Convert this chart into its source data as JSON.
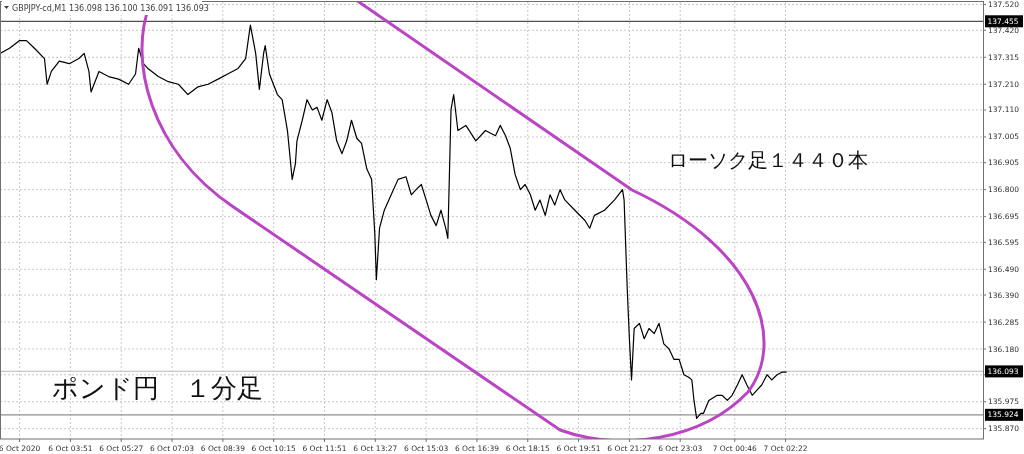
{
  "chart_data": {
    "type": "line",
    "title": "GBPJPY-cd,M1  136.098 136.100 136.091 136.093",
    "annotations": [
      "ローソク足１４４０本",
      "ポンド円　１分足"
    ],
    "x": [
      "2020-10-06T01:38",
      "2020-10-06T01:56",
      "2020-10-06T02:15",
      "2020-10-06T02:28",
      "2020-10-06T02:43",
      "2020-10-06T03:02",
      "2020-10-06T03:07",
      "2020-10-06T03:15",
      "2020-10-06T03:30",
      "2020-10-06T03:49",
      "2020-10-06T04:07",
      "2020-10-06T04:17",
      "2020-10-06T04:26",
      "2020-10-06T04:30",
      "2020-10-06T04:45",
      "2020-10-06T05:03",
      "2020-10-06T05:22",
      "2020-10-06T05:41",
      "2020-10-06T05:54",
      "2020-10-06T06:00",
      "2020-10-06T06:09",
      "2020-10-06T06:18",
      "2020-10-06T06:37",
      "2020-10-06T06:56",
      "2020-10-06T07:15",
      "2020-10-06T07:33",
      "2020-10-06T07:52",
      "2020-10-06T08:11",
      "2020-10-06T08:30",
      "2020-10-06T08:48",
      "2020-10-06T09:07",
      "2020-10-06T09:22",
      "2020-10-06T09:31",
      "2020-10-06T09:41",
      "2020-10-06T09:48",
      "2020-10-06T09:56",
      "2020-10-06T09:59",
      "2020-10-06T10:07",
      "2020-10-06T10:22",
      "2020-10-06T10:31",
      "2020-10-06T10:41",
      "2020-10-06T10:50",
      "2020-10-06T10:56",
      "2020-10-06T10:59",
      "2020-10-06T11:09",
      "2020-10-06T11:18",
      "2020-10-06T11:28",
      "2020-10-06T11:37",
      "2020-10-06T11:46",
      "2020-10-06T11:56",
      "2020-10-06T12:05",
      "2020-10-06T12:14",
      "2020-10-06T12:24",
      "2020-10-06T12:33",
      "2020-10-06T12:42",
      "2020-10-06T12:52",
      "2020-10-06T13:01",
      "2020-10-06T13:11",
      "2020-10-06T13:20",
      "2020-10-06T13:26",
      "2020-10-06T13:29",
      "2020-10-06T13:35",
      "2020-10-06T13:44",
      "2020-10-06T13:57",
      "2020-10-06T14:10",
      "2020-10-06T14:25",
      "2020-10-06T14:35",
      "2020-10-06T14:44",
      "2020-10-06T14:54",
      "2020-10-06T15:03",
      "2020-10-06T15:12",
      "2020-10-06T15:22",
      "2020-10-06T15:31",
      "2020-10-06T15:40",
      "2020-10-06T15:44",
      "2020-10-06T15:50",
      "2020-10-06T15:55",
      "2020-10-06T16:03",
      "2020-10-06T16:18",
      "2020-10-06T16:37",
      "2020-10-06T16:55",
      "2020-10-06T17:14",
      "2020-10-06T17:23",
      "2020-10-06T17:33",
      "2020-10-06T17:42",
      "2020-10-06T17:51",
      "2020-10-06T18:01",
      "2020-10-06T18:10",
      "2020-10-06T18:20",
      "2020-10-06T18:29",
      "2020-10-06T18:38",
      "2020-10-06T18:48",
      "2020-10-06T18:57",
      "2020-10-06T19:06",
      "2020-10-06T19:16",
      "2020-10-06T19:25",
      "2020-10-06T19:44",
      "2020-10-06T20:03",
      "2020-10-06T20:12",
      "2020-10-06T20:21",
      "2020-10-06T20:40",
      "2020-10-06T20:59",
      "2020-10-06T21:14",
      "2020-10-06T21:17",
      "2020-10-06T21:23",
      "2020-10-06T21:27",
      "2020-10-06T21:31",
      "2020-10-06T21:36",
      "2020-10-06T21:46",
      "2020-10-06T21:55",
      "2020-10-06T22:04",
      "2020-10-06T22:14",
      "2020-10-06T22:23",
      "2020-10-06T22:32",
      "2020-10-06T22:42",
      "2020-10-06T22:51",
      "2020-10-06T23:01",
      "2020-10-06T23:10",
      "2020-10-06T23:19",
      "2020-10-06T23:25",
      "2020-10-06T23:29",
      "2020-10-06T23:34",
      "2020-10-06T23:42",
      "2020-10-06T23:47",
      "2020-10-06T23:57",
      "2020-10-07T00:13",
      "2020-10-07T00:22",
      "2020-10-07T00:32",
      "2020-10-07T00:41",
      "2020-10-07T00:51",
      "2020-10-07T01:00",
      "2020-10-07T01:09",
      "2020-10-07T01:19",
      "2020-10-07T01:28",
      "2020-10-07T01:37",
      "2020-10-07T01:47",
      "2020-10-07T01:56",
      "2020-10-07T02:06",
      "2020-10-07T02:15",
      "2020-10-07T02:24"
    ],
    "series": [
      {
        "color": "#000000",
        "values": [
          137.33,
          137.35,
          137.38,
          137.38,
          137.35,
          137.31,
          137.21,
          137.26,
          137.3,
          137.29,
          137.31,
          137.33,
          137.26,
          137.18,
          137.26,
          137.24,
          137.23,
          137.21,
          137.25,
          137.35,
          137.29,
          137.27,
          137.24,
          137.22,
          137.21,
          137.17,
          137.2,
          137.21,
          137.23,
          137.25,
          137.27,
          137.31,
          137.44,
          137.33,
          137.19,
          137.33,
          137.36,
          137.25,
          137.17,
          137.15,
          137.03,
          136.84,
          136.9,
          136.99,
          137.07,
          137.15,
          137.11,
          137.12,
          137.07,
          137.15,
          137.1,
          136.99,
          136.94,
          136.99,
          137.07,
          137.0,
          136.98,
          136.88,
          136.84,
          136.63,
          136.45,
          136.65,
          136.72,
          136.78,
          136.84,
          136.85,
          136.78,
          136.8,
          136.82,
          136.76,
          136.7,
          136.66,
          136.72,
          136.65,
          136.61,
          137.11,
          137.17,
          137.03,
          137.05,
          136.99,
          137.03,
          137.01,
          137.05,
          137.01,
          136.96,
          136.86,
          136.8,
          136.82,
          136.78,
          136.72,
          136.76,
          136.7,
          136.78,
          136.74,
          136.8,
          136.76,
          136.72,
          136.68,
          136.65,
          136.7,
          136.72,
          136.76,
          136.8,
          136.76,
          136.41,
          136.22,
          136.06,
          136.26,
          136.28,
          136.22,
          136.26,
          136.24,
          136.28,
          136.2,
          136.18,
          136.14,
          136.14,
          136.08,
          136.07,
          136.06,
          135.98,
          135.91,
          135.93,
          135.93,
          135.98,
          136.0,
          136.0,
          135.98,
          136.0,
          136.04,
          136.08,
          136.04,
          136.0,
          136.02,
          136.04,
          136.08,
          136.06,
          136.08,
          136.09,
          136.09
        ]
      }
    ],
    "xlim": [
      "2020-10-06T01:38",
      "2020-10-07T08:35"
    ],
    "ylim": [
      135.83,
      137.53
    ],
    "xticks": [
      {
        "value": "2020-10-06T02:15",
        "label": "6 Oct 2020"
      },
      {
        "value": "2020-10-06T03:51",
        "label": "6 Oct 03:51"
      },
      {
        "value": "2020-10-06T05:27",
        "label": "6 Oct 05:27"
      },
      {
        "value": "2020-10-06T07:03",
        "label": "6 Oct 07:03"
      },
      {
        "value": "2020-10-06T08:39",
        "label": "6 Oct 08:39"
      },
      {
        "value": "2020-10-06T10:15",
        "label": "6 Oct 10:15"
      },
      {
        "value": "2020-10-06T11:51",
        "label": "6 Oct 11:51"
      },
      {
        "value": "2020-10-06T13:27",
        "label": "6 Oct 13:27"
      },
      {
        "value": "2020-10-06T15:03",
        "label": "6 Oct 15:03"
      },
      {
        "value": "2020-10-06T16:39",
        "label": "6 Oct 16:39"
      },
      {
        "value": "2020-10-06T18:15",
        "label": "6 Oct 18:15"
      },
      {
        "value": "2020-10-06T19:51",
        "label": "6 Oct 19:51"
      },
      {
        "value": "2020-10-06T21:27",
        "label": "6 Oct 21:27"
      },
      {
        "value": "2020-10-06T23:03",
        "label": "6 Oct 23:03"
      },
      {
        "value": "2020-10-07T00:46",
        "label": "7 Oct 00:46"
      },
      {
        "value": "2020-10-07T02:22",
        "label": "7 Oct 02:22"
      }
    ],
    "yticks": [
      {
        "value": 135.87,
        "label": "135.870"
      },
      {
        "value": 135.975,
        "label": "135.975"
      },
      {
        "value": 136.08,
        "label": null
      },
      {
        "value": 136.18,
        "label": "136.180"
      },
      {
        "value": 136.285,
        "label": "136.285"
      },
      {
        "value": 136.39,
        "label": "136.390"
      },
      {
        "value": 136.49,
        "label": "136.490"
      },
      {
        "value": 136.595,
        "label": "136.595"
      },
      {
        "value": 136.695,
        "label": "136.695"
      },
      {
        "value": 136.8,
        "label": "136.800"
      },
      {
        "value": 136.905,
        "label": "136.905"
      },
      {
        "value": 137.005,
        "label": "137.005"
      },
      {
        "value": 137.11,
        "label": "137.110"
      },
      {
        "value": 137.21,
        "label": "137.210"
      },
      {
        "value": 137.315,
        "label": "137.315"
      },
      {
        "value": 137.42,
        "label": "137.420"
      },
      {
        "value": 137.52,
        "label": "137.520"
      }
    ],
    "ref_lines": [
      {
        "axis": "y",
        "value": 137.455,
        "label": "137.455",
        "color": "#505050"
      },
      {
        "axis": "y",
        "value": 135.924,
        "label": "135.924",
        "color": "#909090"
      },
      {
        "axis": "y",
        "value": 136.093,
        "label": "136.093",
        "color": "#c8c8c8"
      }
    ],
    "grid": true,
    "marker": "none",
    "line_style": "solid"
  }
}
